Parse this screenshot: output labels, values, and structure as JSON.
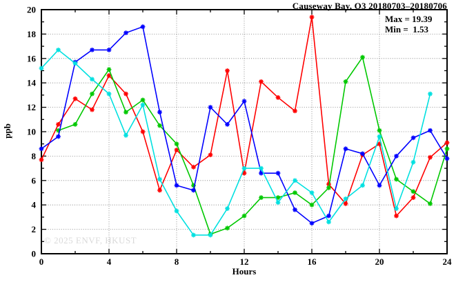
{
  "title": "Causeway Bay, O3 20180703–20180706",
  "annotations": {
    "max_label": "Max = 19.39",
    "min_label": "Min =  1.53"
  },
  "watermark": "© 2025 ENVF, HKUST",
  "chart_data": {
    "type": "line",
    "title": "Causeway Bay, O3 20180703–20180706",
    "xlabel": "Hours",
    "ylabel": "ppb",
    "xlim": [
      0,
      24
    ],
    "ylim": [
      0,
      20
    ],
    "x_major_ticks": [
      0,
      4,
      8,
      12,
      16,
      20,
      24
    ],
    "x_minor_step": 2,
    "y_major_ticks": [
      0,
      2,
      4,
      6,
      8,
      10,
      12,
      14,
      16,
      18,
      20
    ],
    "y_minor_step": 1,
    "grid": "dotted lines at major ticks, mirrored inward ticks on all four borders",
    "legend": "none",
    "marker": "asterisk",
    "max_value": 19.39,
    "min_value": 1.53,
    "x": [
      0,
      1,
      2,
      3,
      4,
      5,
      6,
      7,
      8,
      9,
      10,
      11,
      12,
      13,
      14,
      15,
      16,
      17,
      18,
      19,
      20,
      21,
      22,
      23,
      24
    ],
    "series": [
      {
        "name": "red",
        "color": "#ff0000",
        "values": [
          7.7,
          10.6,
          12.7,
          11.8,
          14.6,
          13.1,
          10.0,
          5.2,
          8.5,
          7.1,
          8.1,
          15.0,
          6.6,
          14.1,
          12.8,
          11.7,
          19.39,
          5.7,
          4.1,
          8.1,
          9.0,
          3.1,
          4.6,
          7.9,
          9.1
        ]
      },
      {
        "name": "green",
        "color": "#00c800",
        "values": [
          null,
          10.1,
          10.6,
          13.1,
          15.1,
          11.6,
          12.6,
          10.5,
          9.0,
          5.6,
          1.6,
          2.1,
          3.1,
          4.6,
          4.6,
          5.0,
          4.0,
          5.4,
          14.1,
          16.1,
          10.1,
          6.1,
          5.1,
          4.1,
          8.6
        ]
      },
      {
        "name": "blue",
        "color": "#0000ff",
        "values": [
          8.6,
          9.6,
          15.7,
          16.7,
          16.7,
          18.1,
          18.6,
          11.6,
          5.6,
          5.2,
          12.0,
          10.6,
          12.5,
          6.6,
          6.6,
          3.6,
          2.5,
          3.1,
          8.6,
          8.2,
          5.6,
          8.0,
          9.5,
          10.1,
          7.8
        ]
      },
      {
        "name": "cyan",
        "color": "#00e0e0",
        "values": [
          15.2,
          16.7,
          15.6,
          14.3,
          13.1,
          9.7,
          12.2,
          6.1,
          3.5,
          1.53,
          1.53,
          3.7,
          7.0,
          7.0,
          4.2,
          6.0,
          5.0,
          2.6,
          4.5,
          5.6,
          9.6,
          3.7,
          7.5,
          13.1,
          null
        ]
      }
    ]
  }
}
